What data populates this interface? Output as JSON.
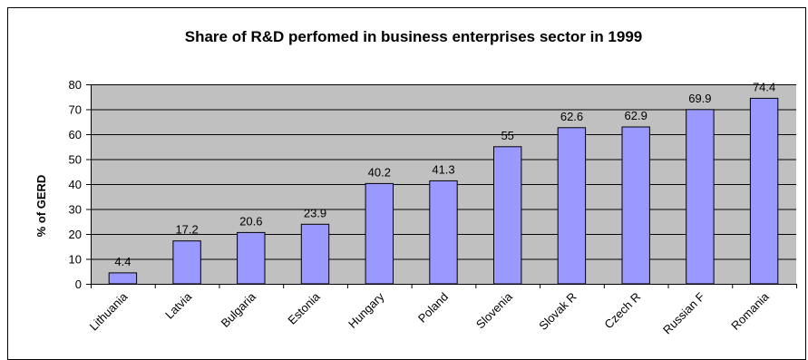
{
  "chart_data": {
    "type": "bar",
    "title": "Share of R&D perfomed in business enterprises sector in 1999",
    "xlabel": "",
    "ylabel": "% of GERD",
    "categories": [
      "Lithuania",
      "Latvia",
      "Bulgaria",
      "Estonia",
      "Hungary",
      "Poland",
      "Slovenia",
      "Slovak R",
      "Czech R",
      "Russian F",
      "Romania"
    ],
    "values": [
      4.4,
      17.2,
      20.6,
      23.9,
      40.2,
      41.3,
      55,
      62.6,
      62.9,
      69.9,
      74.4
    ],
    "data_labels": [
      "4.4",
      "17.2",
      "20.6",
      "23.9",
      "40.2",
      "41.3",
      "55",
      "62.6",
      "62.9",
      "69.9",
      "74.4"
    ],
    "ylim": [
      0,
      80
    ],
    "yticks": [
      0,
      10,
      20,
      30,
      40,
      50,
      60,
      70,
      80
    ],
    "grid": true,
    "legend": "none",
    "colors": {
      "bar_fill": "#9999ff",
      "bar_stroke": "#000000",
      "plot_background": "#c0c0c0",
      "gridline": "#000000",
      "frame": "#000000"
    }
  }
}
